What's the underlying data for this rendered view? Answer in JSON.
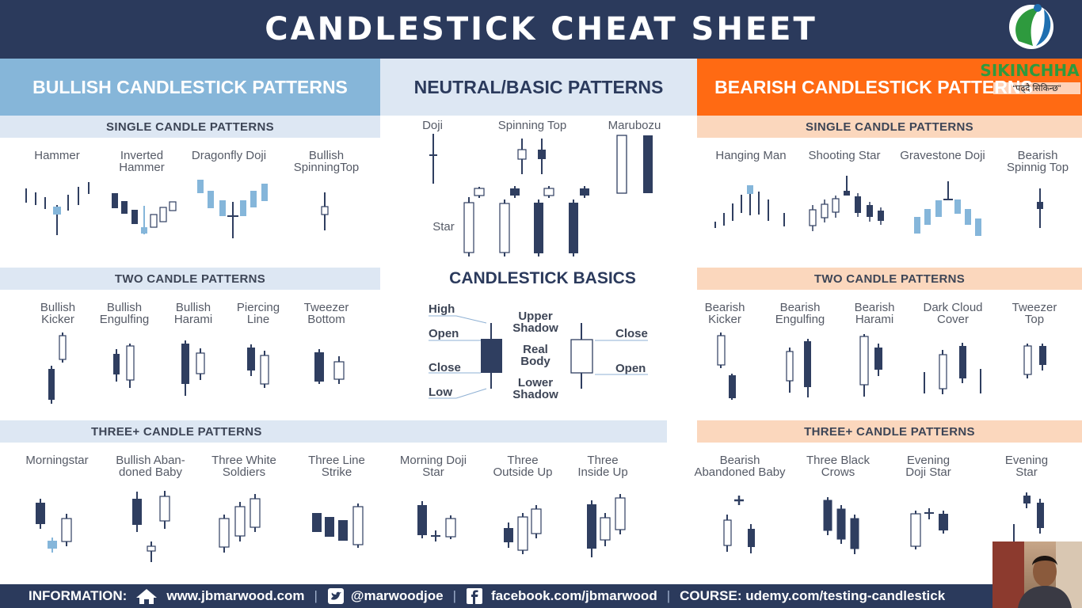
{
  "title": "CANDLESTICK CHEAT SHEET",
  "columns": {
    "bullish": "BULLISH CANDLESTICK PATTERNS",
    "neutral": "NEUTRAL/BASIC PATTERNS",
    "bearish": "BEARISH CANDLESTICK PATTERNS"
  },
  "sections": {
    "bull_single": "SINGLE CANDLE PATTERNS",
    "bull_two": "TWO CANDLE PATTERNS",
    "bull_three": "THREE+ CANDLE PATTERNS",
    "bear_single": "SINGLE CANDLE PATTERNS",
    "bear_two": "TWO CANDLE PATTERNS",
    "bear_three": "THREE+ CANDLE PATTERNS",
    "basics": "CANDLESTICK BASICS"
  },
  "bull_single": [
    "Hammer",
    "Inverted\nHammer",
    "Dragonfly Doji",
    "Bullish\nSpinningTop"
  ],
  "neutral_single": [
    "Doji",
    "Spinning Top",
    "Marubozu",
    "Star"
  ],
  "bear_single": [
    "Hanging Man",
    "Shooting Star",
    "Gravestone Doji",
    "Bearish\nSpinnig Top"
  ],
  "bull_two": [
    "Bullish\nKicker",
    "Bullish\nEngulfing",
    "Bullish\nHarami",
    "Piercing\nLine",
    "Tweezer\nBottom"
  ],
  "bear_two": [
    "Bearish\nKicker",
    "Bearish\nEngulfing",
    "Bearish\nHarami",
    "Dark Cloud\nCover",
    "Tweezer\nTop"
  ],
  "bull_three": [
    "Morningstar",
    "Bullish Aban-\ndoned Baby",
    "Three White\nSoldiers",
    "Three Line\nStrike",
    "Morning Doji\nStar",
    "Three\nOutside Up",
    "Three\nInside Up"
  ],
  "bear_three": [
    "Bearish\nAbandoned Baby",
    "Three Black\nCrows",
    "Evening\nDoji Star",
    "Evening\nStar"
  ],
  "basics": {
    "high": "High",
    "open_left": "Open",
    "close_left": "Close",
    "low": "Low",
    "upper_shadow": "Upper\nShadow",
    "real_body": "Real\nBody",
    "lower_shadow": "Lower\nShadow",
    "close_right": "Close",
    "open_right": "Open"
  },
  "footer": {
    "information": "INFORMATION:",
    "website": "www.jbmarwood.com",
    "twitter": "@marwoodjoe",
    "facebook": "facebook.com/jbmarwood",
    "course": "COURSE: udemy.com/testing-candlestick"
  },
  "logo": {
    "name": "SIKINCHHA",
    "tagline": "“पढ्दै सिकिन्छ”"
  },
  "colors": {
    "navy": "#2b3a5c",
    "bull_blue": "#85b6da",
    "bear_orange": "#ff6a13",
    "candle_dark": "#2f3e60"
  }
}
